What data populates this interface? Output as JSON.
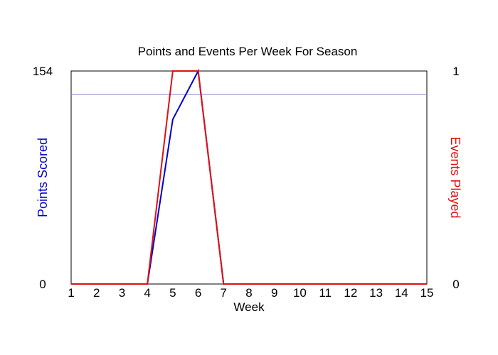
{
  "chart_data": {
    "type": "line",
    "title": "Points and Events Per Week For Season",
    "xlabel": "Week",
    "ylabel_left": "Points Scored",
    "ylabel_right": "Events Played",
    "x": [
      1,
      2,
      3,
      4,
      5,
      6,
      7,
      8,
      9,
      10,
      11,
      12,
      13,
      14,
      15
    ],
    "xlim": [
      1,
      15
    ],
    "ylim_left": [
      0,
      154
    ],
    "ylim_right": [
      0,
      1
    ],
    "left_ticks": [
      "0",
      "154"
    ],
    "right_ticks": [
      "0",
      "1"
    ],
    "reference_line_left": 137,
    "series": [
      {
        "name": "Points Scored",
        "axis": "left",
        "color": "#0000cc",
        "values": [
          0,
          0,
          0,
          0,
          119,
          154,
          0,
          0,
          0,
          0,
          0,
          0,
          0,
          0,
          0
        ]
      },
      {
        "name": "Events Played",
        "axis": "right",
        "color": "#dd1111",
        "values": [
          0,
          0,
          0,
          0,
          1,
          1,
          0,
          0,
          0,
          0,
          0,
          0,
          0,
          0,
          0
        ]
      }
    ],
    "grid": false,
    "colors": {
      "left_axis": "#0000cc",
      "right_axis": "#dd1111",
      "frame": "#000000",
      "reference_line": "#8888cc"
    }
  }
}
